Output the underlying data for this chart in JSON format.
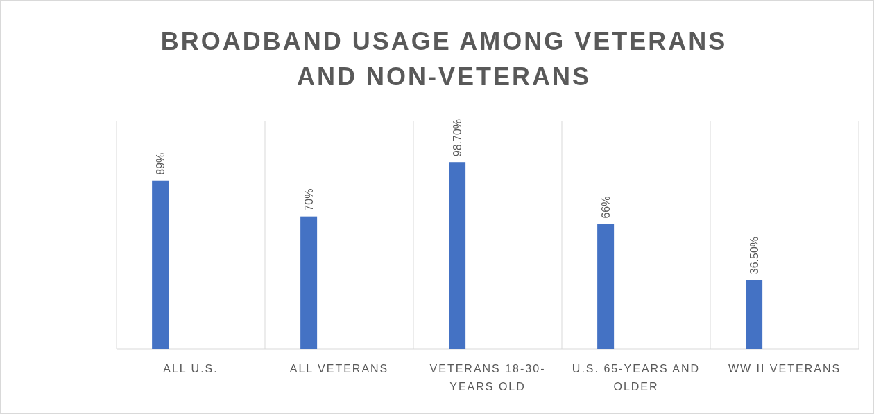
{
  "chart_data": {
    "type": "bar",
    "title": "BROADBAND USAGE AMONG VETERANS AND NON-VETERANS",
    "categories": [
      "ALL U.S.",
      "ALL VETERANS",
      "VETERANS 18-30-YEARS OLD",
      "U.S. 65-YEARS AND OLDER",
      "WW II VETERANS"
    ],
    "values": [
      89,
      70,
      98.7,
      66,
      36.5
    ],
    "value_labels": [
      "89%",
      "70%",
      "98.70%",
      "66%",
      "36.50%"
    ],
    "color": "#4472c4",
    "grid": "x"
  }
}
